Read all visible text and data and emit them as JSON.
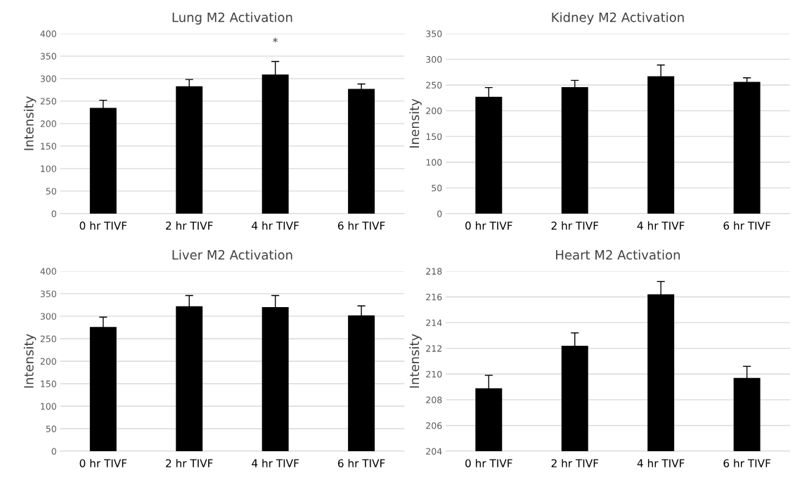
{
  "chart_data": [
    {
      "type": "bar",
      "title": "Lung M2 Activation",
      "ylabel": "Intensity",
      "categories": [
        "0 hr TIVF",
        "2 hr TIVF",
        "4 hr TIVF",
        "6 hr TIVF"
      ],
      "values": [
        235,
        283,
        309,
        277
      ],
      "errors": [
        17,
        15,
        29,
        11
      ],
      "color": "#000000",
      "ylim": [
        0,
        400
      ],
      "yticks": [
        0,
        50,
        100,
        150,
        200,
        250,
        300,
        350,
        400
      ],
      "grid": "y",
      "annotations": [
        {
          "text": "*",
          "x": "4 hr TIVF",
          "y": 338
        }
      ]
    },
    {
      "type": "bar",
      "title": "Kidney M2 Activation",
      "ylabel": "Inensity",
      "categories": [
        "0 hr TIVF",
        "2 hr TIVF",
        "4 hr TIVF",
        "6 hr TIVF"
      ],
      "values": [
        227,
        246,
        267,
        256
      ],
      "errors": [
        18,
        13,
        22,
        8
      ],
      "color": "#000000",
      "ylim": [
        0,
        350
      ],
      "yticks": [
        0,
        50,
        100,
        150,
        200,
        250,
        300,
        350
      ],
      "grid": "y"
    },
    {
      "type": "bar",
      "title": "Liver M2 Activation",
      "ylabel": "Intensity",
      "categories": [
        "0 hr TIVF",
        "2 hr TIVF",
        "4 hr TIVF",
        "6 hr TIVF"
      ],
      "values": [
        276,
        322,
        320,
        302
      ],
      "errors": [
        22,
        24,
        26,
        21
      ],
      "color": "#000000",
      "ylim": [
        0,
        400
      ],
      "yticks": [
        0,
        50,
        100,
        150,
        200,
        250,
        300,
        350,
        400
      ],
      "grid": "y"
    },
    {
      "type": "bar",
      "title": "Heart M2 Activation",
      "ylabel": "Intensity",
      "categories": [
        "0 hr TIVF",
        "2 hr TIVF",
        "4 hr TIVF",
        "6 hr TIVF"
      ],
      "values": [
        208.9,
        212.2,
        216.2,
        209.7
      ],
      "errors": [
        1.0,
        1.0,
        1.0,
        0.9
      ],
      "color": "#000000",
      "ylim": [
        204,
        218
      ],
      "yticks": [
        204,
        206,
        208,
        210,
        212,
        214,
        216,
        218
      ],
      "grid": "y"
    }
  ]
}
